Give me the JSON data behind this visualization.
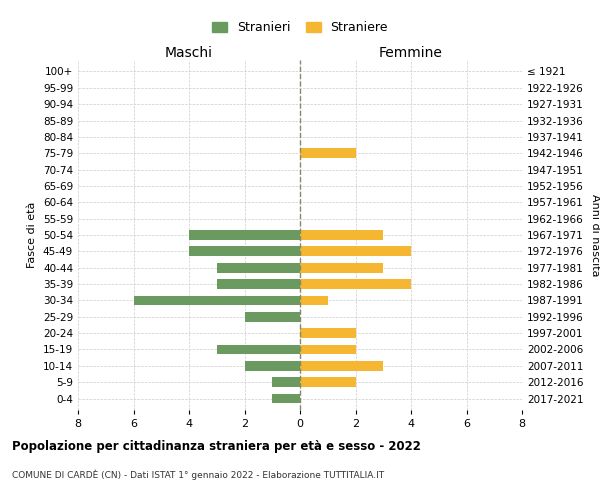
{
  "age_groups": [
    "100+",
    "95-99",
    "90-94",
    "85-89",
    "80-84",
    "75-79",
    "70-74",
    "65-69",
    "60-64",
    "55-59",
    "50-54",
    "45-49",
    "40-44",
    "35-39",
    "30-34",
    "25-29",
    "20-24",
    "15-19",
    "10-14",
    "5-9",
    "0-4"
  ],
  "birth_years": [
    "≤ 1921",
    "1922-1926",
    "1927-1931",
    "1932-1936",
    "1937-1941",
    "1942-1946",
    "1947-1951",
    "1952-1956",
    "1957-1961",
    "1962-1966",
    "1967-1971",
    "1972-1976",
    "1977-1981",
    "1982-1986",
    "1987-1991",
    "1992-1996",
    "1997-2001",
    "2002-2006",
    "2007-2011",
    "2012-2016",
    "2017-2021"
  ],
  "maschi": [
    0,
    0,
    0,
    0,
    0,
    0,
    0,
    0,
    0,
    0,
    4,
    4,
    3,
    3,
    6,
    2,
    0,
    3,
    2,
    1,
    1
  ],
  "femmine": [
    0,
    0,
    0,
    0,
    0,
    2,
    0,
    0,
    0,
    0,
    3,
    4,
    3,
    4,
    1,
    0,
    2,
    2,
    3,
    2,
    0
  ],
  "color_maschi": "#6a9a5f",
  "color_femmine": "#f5b731",
  "title": "Popolazione per cittadinanza straniera per età e sesso - 2022",
  "subtitle": "COMUNE DI CARDÈ (CN) - Dati ISTAT 1° gennaio 2022 - Elaborazione TUTTITALIA.IT",
  "xlabel_left": "Maschi",
  "xlabel_right": "Femmine",
  "ylabel_left": "Fasce di età",
  "ylabel_right": "Anni di nascita",
  "legend_maschi": "Stranieri",
  "legend_femmine": "Straniere",
  "xlim": 8,
  "background_color": "#ffffff",
  "grid_color": "#cccccc"
}
